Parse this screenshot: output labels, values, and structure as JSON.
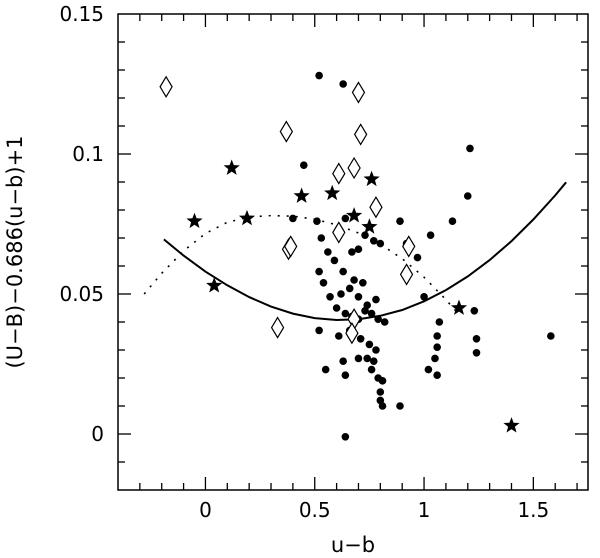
{
  "chart_data": {
    "type": "scatter",
    "xlabel": "u−b",
    "ylabel": "(U−B)−0.686(u−b)+1",
    "xlim": [
      -0.4,
      1.75
    ],
    "ylim": [
      -0.02,
      0.15
    ],
    "x_ticks": [
      0,
      0.5,
      1,
      1.5
    ],
    "x_tick_labels": [
      "0",
      "0.5",
      "1",
      "1.5"
    ],
    "y_ticks": [
      0,
      0.05,
      0.1,
      0.15
    ],
    "y_tick_labels": [
      "0",
      "0.05",
      "0.1",
      "0.15"
    ],
    "grid": false,
    "series": [
      {
        "marker": "filled-circle",
        "color": "#000000",
        "points": [
          [
            0.52,
            0.128
          ],
          [
            0.63,
            0.125
          ],
          [
            0.45,
            0.096
          ],
          [
            0.4,
            0.077
          ],
          [
            0.51,
            0.076
          ],
          [
            0.53,
            0.07
          ],
          [
            0.56,
            0.065
          ],
          [
            0.59,
            0.062
          ],
          [
            0.64,
            0.077
          ],
          [
            0.7,
            0.066
          ],
          [
            0.67,
            0.065
          ],
          [
            0.62,
            0.072
          ],
          [
            0.73,
            0.071
          ],
          [
            0.77,
            0.069
          ],
          [
            0.8,
            0.068
          ],
          [
            0.63,
            0.058
          ],
          [
            0.68,
            0.055
          ],
          [
            0.72,
            0.054
          ],
          [
            0.52,
            0.058
          ],
          [
            0.54,
            0.054
          ],
          [
            0.57,
            0.049
          ],
          [
            0.62,
            0.05
          ],
          [
            0.66,
            0.052
          ],
          [
            0.7,
            0.049
          ],
          [
            0.74,
            0.046
          ],
          [
            0.78,
            0.048
          ],
          [
            0.6,
            0.045
          ],
          [
            0.64,
            0.043
          ],
          [
            0.67,
            0.042
          ],
          [
            0.7,
            0.041
          ],
          [
            0.73,
            0.044
          ],
          [
            0.76,
            0.043
          ],
          [
            0.79,
            0.041
          ],
          [
            0.82,
            0.04
          ],
          [
            0.52,
            0.037
          ],
          [
            0.61,
            0.035
          ],
          [
            0.66,
            0.037
          ],
          [
            0.71,
            0.034
          ],
          [
            0.75,
            0.032
          ],
          [
            0.78,
            0.03
          ],
          [
            0.55,
            0.023
          ],
          [
            0.63,
            0.026
          ],
          [
            0.7,
            0.027
          ],
          [
            0.74,
            0.027
          ],
          [
            0.77,
            0.026
          ],
          [
            0.64,
            0.021
          ],
          [
            0.76,
            0.023
          ],
          [
            0.79,
            0.02
          ],
          [
            0.81,
            0.019
          ],
          [
            0.8,
            0.015
          ],
          [
            0.8,
            0.012
          ],
          [
            0.81,
            0.01
          ],
          [
            0.89,
            0.01
          ],
          [
            0.64,
            -0.001
          ],
          [
            0.89,
            0.076
          ],
          [
            0.92,
            0.068
          ],
          [
            0.97,
            0.063
          ],
          [
            1.03,
            0.071
          ],
          [
            1.13,
            0.076
          ],
          [
            1.2,
            0.085
          ],
          [
            1.21,
            0.102
          ],
          [
            1.23,
            0.044
          ],
          [
            1.24,
            0.034
          ],
          [
            1.24,
            0.029
          ],
          [
            1.07,
            0.04
          ],
          [
            1.06,
            0.035
          ],
          [
            1.06,
            0.031
          ],
          [
            1.05,
            0.027
          ],
          [
            1.02,
            0.023
          ],
          [
            1.06,
            0.021
          ],
          [
            1.0,
            0.049
          ],
          [
            1.58,
            0.035
          ]
        ]
      },
      {
        "marker": "filled-star",
        "color": "#000000",
        "points": [
          [
            -0.05,
            0.076
          ],
          [
            0.12,
            0.095
          ],
          [
            0.19,
            0.077
          ],
          [
            0.04,
            0.053
          ],
          [
            0.44,
            0.085
          ],
          [
            0.58,
            0.086
          ],
          [
            0.68,
            0.078
          ],
          [
            0.75,
            0.074
          ],
          [
            0.76,
            0.091
          ],
          [
            1.16,
            0.045
          ],
          [
            1.4,
            0.003
          ]
        ]
      },
      {
        "marker": "open-diamond",
        "color": "#000000",
        "points": [
          [
            -0.18,
            0.124
          ],
          [
            0.37,
            0.108
          ],
          [
            0.7,
            0.122
          ],
          [
            0.71,
            0.107
          ],
          [
            0.61,
            0.093
          ],
          [
            0.68,
            0.095
          ],
          [
            0.78,
            0.081
          ],
          [
            0.61,
            0.072
          ],
          [
            0.38,
            0.066
          ],
          [
            0.39,
            0.067
          ],
          [
            0.93,
            0.067
          ],
          [
            0.92,
            0.057
          ],
          [
            0.33,
            0.038
          ],
          [
            0.68,
            0.041
          ],
          [
            0.67,
            0.036
          ]
        ]
      }
    ],
    "curves": [
      {
        "style": "solid",
        "points": [
          [
            -0.19,
            0.0695
          ],
          [
            -0.1,
            0.0637
          ],
          [
            0.0,
            0.058
          ],
          [
            0.1,
            0.0531
          ],
          [
            0.2,
            0.0489
          ],
          [
            0.3,
            0.0455
          ],
          [
            0.4,
            0.043
          ],
          [
            0.5,
            0.0414
          ],
          [
            0.6,
            0.0407
          ],
          [
            0.7,
            0.041
          ],
          [
            0.8,
            0.0422
          ],
          [
            0.9,
            0.0443
          ],
          [
            1.0,
            0.0474
          ],
          [
            1.1,
            0.0514
          ],
          [
            1.2,
            0.0563
          ],
          [
            1.3,
            0.0621
          ],
          [
            1.4,
            0.0689
          ],
          [
            1.5,
            0.0766
          ],
          [
            1.6,
            0.0852
          ],
          [
            1.65,
            0.0899
          ]
        ]
      },
      {
        "style": "dotted",
        "points": [
          [
            -0.28,
            0.05
          ],
          [
            -0.2,
            0.0574
          ],
          [
            -0.1,
            0.0654
          ],
          [
            0.0,
            0.0716
          ],
          [
            0.1,
            0.0756
          ],
          [
            0.2,
            0.0775
          ],
          [
            0.3,
            0.078
          ],
          [
            0.4,
            0.0778
          ],
          [
            0.5,
            0.0767
          ],
          [
            0.6,
            0.0747
          ],
          [
            0.7,
            0.0718
          ],
          [
            0.8,
            0.0678
          ],
          [
            0.9,
            0.0626
          ],
          [
            1.0,
            0.056
          ],
          [
            1.1,
            0.048
          ],
          [
            1.15,
            0.0435
          ]
        ]
      }
    ]
  }
}
